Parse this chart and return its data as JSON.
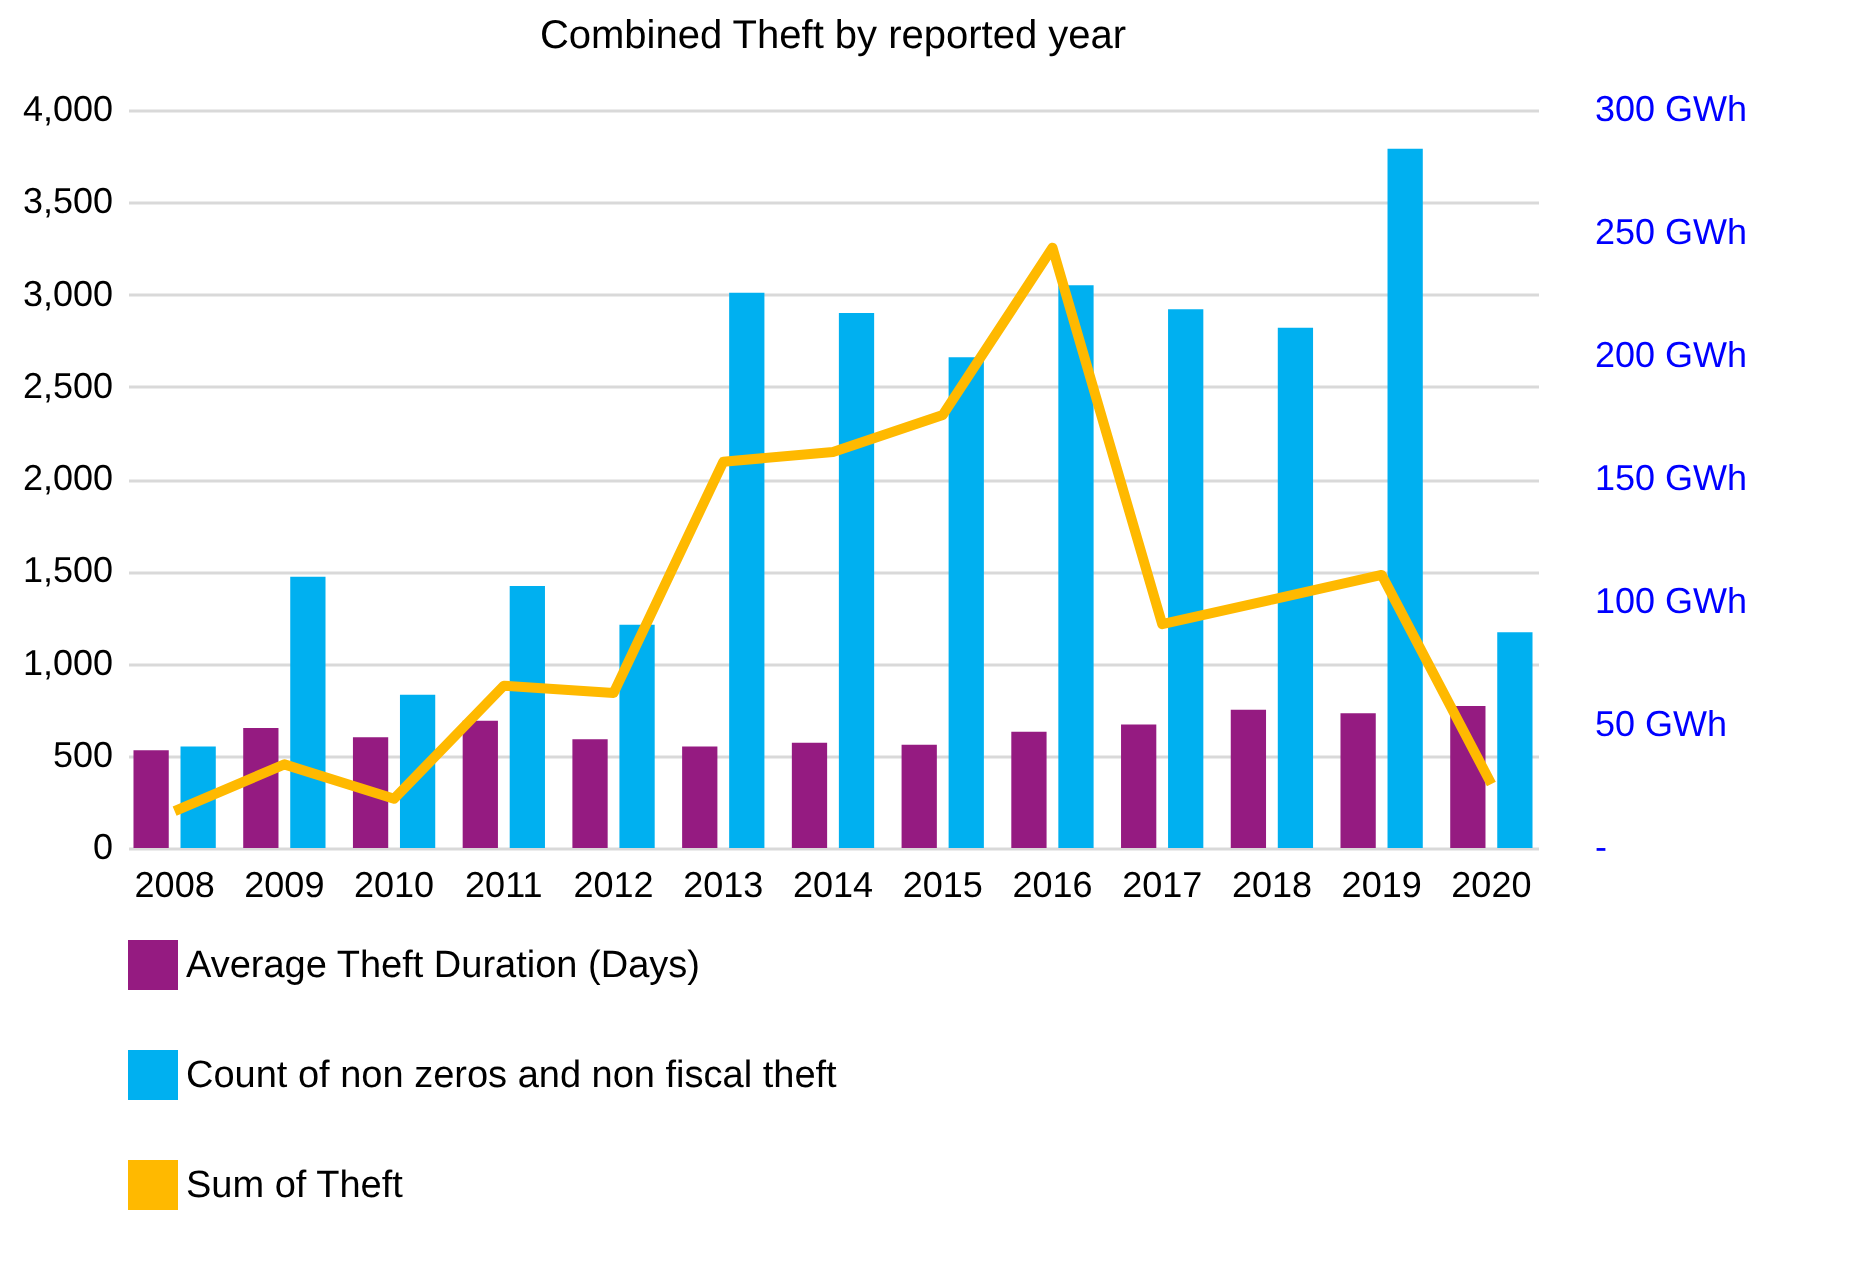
{
  "chart_data": {
    "type": "bar",
    "title": "Combined Theft by reported year",
    "categories": [
      "2008",
      "2009",
      "2010",
      "2011",
      "2012",
      "2013",
      "2014",
      "2015",
      "2016",
      "2017",
      "2018",
      "2019",
      "2020"
    ],
    "series": [
      {
        "name": "Average Theft Duration (Days)",
        "color": "#951b81",
        "values": [
          530,
          650,
          600,
          690,
          590,
          550,
          570,
          560,
          630,
          670,
          750,
          730,
          770
        ]
      },
      {
        "name": "Count of non zeros and non fiscal theft",
        "color": "#00b0f0",
        "values": [
          550,
          1470,
          830,
          1420,
          1210,
          3010,
          2900,
          2660,
          3050,
          2920,
          2820,
          3790,
          1170
        ]
      },
      {
        "name": "Sum of Theft",
        "type": "line",
        "axis": "y2",
        "color": "#ffb900",
        "marker": "none",
        "line_style": "solid",
        "values": [
          15,
          34,
          20,
          66,
          63,
          157,
          161,
          176,
          244,
          91,
          101,
          111,
          26
        ]
      }
    ],
    "ylim": [
      0,
      4000
    ],
    "yticks": [
      0,
      500,
      {
        "value": 1000,
        "label": "1,000"
      },
      {
        "value": 1500,
        "label": "1,500"
      },
      {
        "value": 2000,
        "label": "2,000"
      },
      {
        "value": 2500,
        "label": "2,500"
      },
      {
        "value": 3000,
        "label": "3,000"
      },
      {
        "value": 3500,
        "label": "3,500"
      },
      {
        "value": 4000,
        "label": "4,000"
      }
    ],
    "y2lim": [
      0,
      300
    ],
    "y2ticks": [
      {
        "value": 0,
        "label": "-"
      },
      {
        "value": 50,
        "label": "50 GWh"
      },
      {
        "value": 100,
        "label": "100 GWh"
      },
      {
        "value": 150,
        "label": "150 GWh"
      },
      {
        "value": 200,
        "label": "200 GWh"
      },
      {
        "value": 250,
        "label": "250 GWh"
      },
      {
        "value": 300,
        "label": "300 GWh"
      }
    ],
    "grid": "y",
    "legend": "bottom"
  }
}
